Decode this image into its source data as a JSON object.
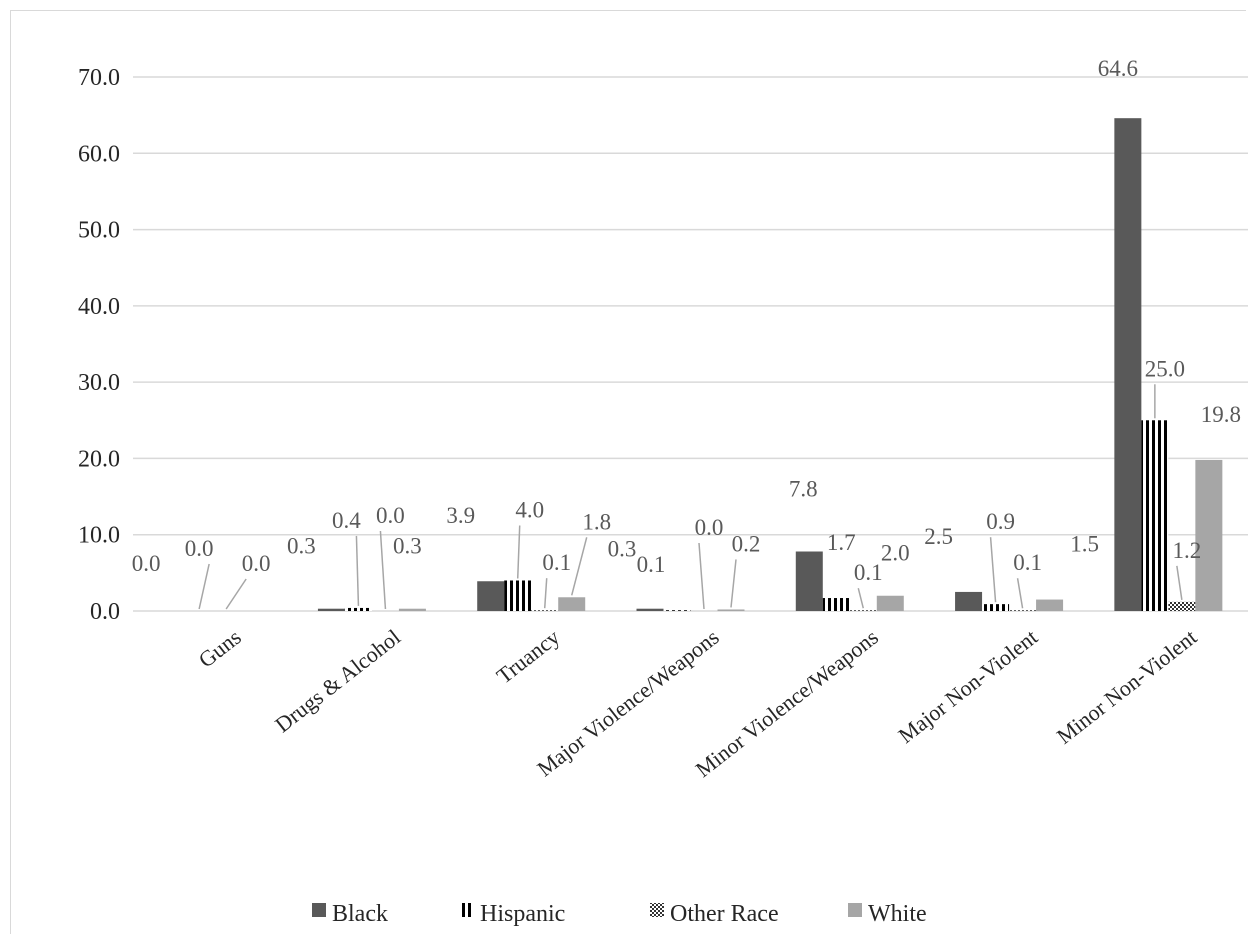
{
  "chart_data": {
    "type": "bar",
    "title": "",
    "xlabel": "",
    "ylabel": "",
    "ylim": [
      0,
      70
    ],
    "yticks": [
      0,
      10,
      20,
      30,
      40,
      50,
      60,
      70
    ],
    "ytick_labels": [
      "0.0",
      "10.0",
      "20.0",
      "30.0",
      "40.0",
      "50.0",
      "60.0",
      "70.0"
    ],
    "grid": true,
    "legend_position": "bottom",
    "categories": [
      "Guns",
      "Drugs & Alcohol",
      "Truancy",
      "Major Violence/Weapons",
      "Minor Violence/Weapons",
      "Major Non-Violent",
      "Minor Non-Violent"
    ],
    "series": [
      {
        "name": "Black",
        "color": "#595959",
        "pattern": "solid",
        "values": [
          0.0,
          0.3,
          3.9,
          0.3,
          7.8,
          2.5,
          64.6
        ],
        "labels": [
          "0.0",
          "0.3",
          "3.9",
          "0.3",
          "7.8",
          "2.5",
          "64.6"
        ]
      },
      {
        "name": "Hispanic",
        "color": "#000000",
        "pattern": "vertical-stripes",
        "values": [
          0.0,
          0.4,
          4.0,
          0.1,
          1.7,
          0.9,
          25.0
        ],
        "labels": [
          "0.0",
          "0.4",
          "4.0",
          "0.1",
          "1.7",
          "0.9",
          "25.0"
        ]
      },
      {
        "name": "Other Race",
        "color": "#000000",
        "pattern": "checker",
        "values": [
          0.0,
          0.0,
          0.1,
          0.0,
          0.1,
          0.1,
          1.2
        ],
        "labels": [
          "0.0",
          "0.0",
          "0.1",
          "0.0",
          "0.1",
          "0.1",
          "1.2"
        ]
      },
      {
        "name": "White",
        "color": "#a6a6a6",
        "pattern": "solid",
        "values": [
          0.0,
          0.3,
          1.8,
          0.2,
          2.0,
          1.5,
          19.8
        ],
        "labels": [
          "",
          "0.3",
          "1.8",
          "0.2",
          "2.0",
          "1.5",
          "19.8"
        ]
      }
    ]
  }
}
